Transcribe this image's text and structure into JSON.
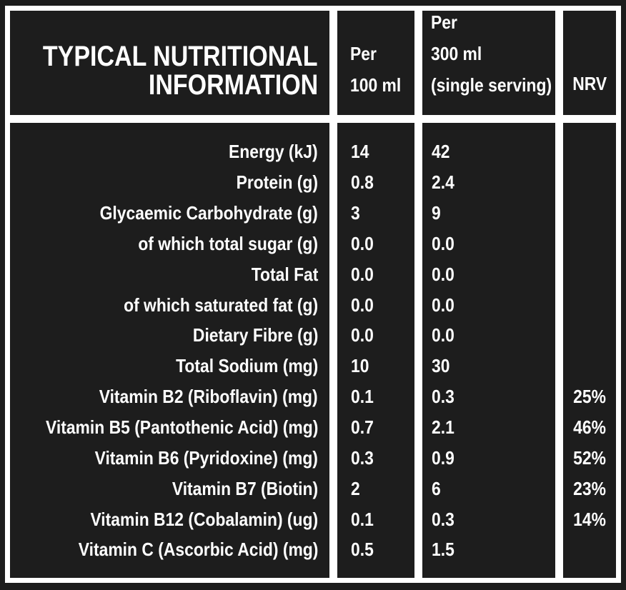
{
  "colors": {
    "background": "#1c1c1c",
    "cell": "#1d1d1d",
    "grid_lines": "#ffffff",
    "text": "#ffffff"
  },
  "header": {
    "title_line1": "TYPICAL NUTRITIONAL",
    "title_line2": "INFORMATION",
    "per100": {
      "line1": "Per",
      "line2": "100 ml"
    },
    "per300": {
      "line1": "Per",
      "line2": "300 ml",
      "line3": "(single serving)"
    },
    "nrv": "NRV"
  },
  "table": {
    "rows": [
      {
        "label": "Energy (kJ)",
        "per100": "14",
        "per300": "42",
        "nrv": ""
      },
      {
        "label": "Protein (g)",
        "per100": "0.8",
        "per300": "2.4",
        "nrv": ""
      },
      {
        "label": "Glycaemic Carbohydrate (g)",
        "per100": "3",
        "per300": "9",
        "nrv": ""
      },
      {
        "label": "of which total sugar (g)",
        "per100": "0.0",
        "per300": "0.0",
        "nrv": ""
      },
      {
        "label": "Total Fat",
        "per100": "0.0",
        "per300": "0.0",
        "nrv": ""
      },
      {
        "label": "of which saturated fat (g)",
        "per100": "0.0",
        "per300": "0.0",
        "nrv": ""
      },
      {
        "label": "Dietary Fibre (g)",
        "per100": "0.0",
        "per300": "0.0",
        "nrv": ""
      },
      {
        "label": "Total Sodium (mg)",
        "per100": "10",
        "per300": "30",
        "nrv": ""
      },
      {
        "label": "Vitamin B2 (Riboflavin) (mg)",
        "per100": "0.1",
        "per300": "0.3",
        "nrv": "25%"
      },
      {
        "label": "Vitamin B5 (Pantothenic Acid) (mg)",
        "per100": "0.7",
        "per300": "2.1",
        "nrv": "46%"
      },
      {
        "label": "Vitamin B6 (Pyridoxine) (mg)",
        "per100": "0.3",
        "per300": "0.9",
        "nrv": "52%"
      },
      {
        "label": "Vitamin B7 (Biotin)",
        "per100": "2",
        "per300": "6",
        "nrv": "23%"
      },
      {
        "label": "Vitamin B12 (Cobalamin) (ug)",
        "per100": "0.1",
        "per300": "0.3",
        "nrv": "14%"
      },
      {
        "label": "Vitamin C (Ascorbic Acid) (mg)",
        "per100": "0.5",
        "per300": "1.5",
        "nrv": ""
      }
    ]
  }
}
